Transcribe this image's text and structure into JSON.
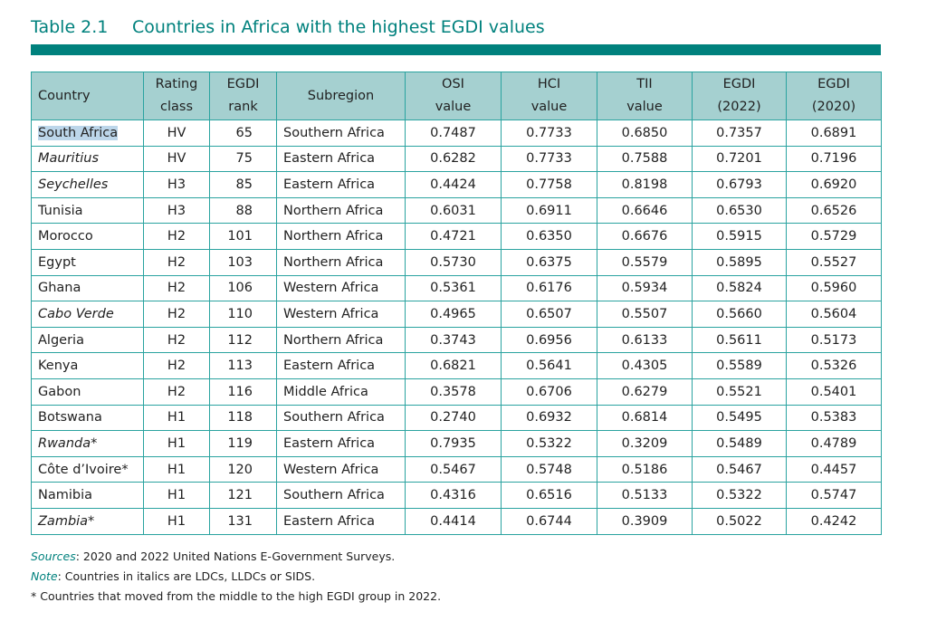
{
  "title": {
    "number": "Table 2.1",
    "text": "Countries in Africa with the highest EGDI values"
  },
  "headers": [
    [
      "Country"
    ],
    [
      "Rating",
      "class"
    ],
    [
      "EGDI",
      "rank"
    ],
    [
      "Subregion"
    ],
    [
      "OSI",
      "value"
    ],
    [
      "HCI",
      "value"
    ],
    [
      "TII",
      "value"
    ],
    [
      "EGDI",
      "(2022)"
    ],
    [
      "EGDI",
      "(2020)"
    ]
  ],
  "rows": [
    {
      "country": "South Africa",
      "italic": false,
      "selected": true,
      "class": "HV",
      "rank": "65",
      "subregion": "Southern Africa",
      "osi": "0.7487",
      "hci": "0.7733",
      "tii": "0.6850",
      "egdi2022": "0.7357",
      "egdi2020": "0.6891"
    },
    {
      "country": "Mauritius",
      "italic": true,
      "class": "HV",
      "rank": "75",
      "subregion": "Eastern Africa",
      "osi": "0.6282",
      "hci": "0.7733",
      "tii": "0.7588",
      "egdi2022": "0.7201",
      "egdi2020": "0.7196"
    },
    {
      "country": "Seychelles",
      "italic": true,
      "class": "H3",
      "rank": "85",
      "subregion": "Eastern Africa",
      "osi": "0.4424",
      "hci": "0.7758",
      "tii": "0.8198",
      "egdi2022": "0.6793",
      "egdi2020": "0.6920"
    },
    {
      "country": "Tunisia",
      "italic": false,
      "class": "H3",
      "rank": "88",
      "subregion": "Northern Africa",
      "osi": "0.6031",
      "hci": "0.6911",
      "tii": "0.6646",
      "egdi2022": "0.6530",
      "egdi2020": "0.6526"
    },
    {
      "country": "Morocco",
      "italic": false,
      "class": "H2",
      "rank": "101",
      "subregion": "Northern Africa",
      "osi": "0.4721",
      "hci": "0.6350",
      "tii": "0.6676",
      "egdi2022": "0.5915",
      "egdi2020": "0.5729"
    },
    {
      "country": "Egypt",
      "italic": false,
      "class": "H2",
      "rank": "103",
      "subregion": "Northern Africa",
      "osi": "0.5730",
      "hci": "0.6375",
      "tii": "0.5579",
      "egdi2022": "0.5895",
      "egdi2020": "0.5527"
    },
    {
      "country": "Ghana",
      "italic": false,
      "class": "H2",
      "rank": "106",
      "subregion": "Western Africa",
      "osi": "0.5361",
      "hci": "0.6176",
      "tii": "0.5934",
      "egdi2022": "0.5824",
      "egdi2020": "0.5960"
    },
    {
      "country": "Cabo Verde",
      "italic": true,
      "class": "H2",
      "rank": "110",
      "subregion": "Western Africa",
      "osi": "0.4965",
      "hci": "0.6507",
      "tii": "0.5507",
      "egdi2022": "0.5660",
      "egdi2020": "0.5604"
    },
    {
      "country": "Algeria",
      "italic": false,
      "class": "H2",
      "rank": "112",
      "subregion": "Northern Africa",
      "osi": "0.3743",
      "hci": "0.6956",
      "tii": "0.6133",
      "egdi2022": "0.5611",
      "egdi2020": "0.5173"
    },
    {
      "country": "Kenya",
      "italic": false,
      "class": "H2",
      "rank": "113",
      "subregion": "Eastern Africa",
      "osi": "0.6821",
      "hci": "0.5641",
      "tii": "0.4305",
      "egdi2022": "0.5589",
      "egdi2020": "0.5326"
    },
    {
      "country": "Gabon",
      "italic": false,
      "class": "H2",
      "rank": "116",
      "subregion": "Middle Africa",
      "osi": "0.3578",
      "hci": "0.6706",
      "tii": "0.6279",
      "egdi2022": "0.5521",
      "egdi2020": "0.5401"
    },
    {
      "country": "Botswana",
      "italic": false,
      "class": "H1",
      "rank": "118",
      "subregion": "Southern Africa",
      "osi": "0.2740",
      "hci": "0.6932",
      "tii": "0.6814",
      "egdi2022": "0.5495",
      "egdi2020": "0.5383"
    },
    {
      "country": "Rwanda*",
      "italic": true,
      "class": "H1",
      "rank": "119",
      "subregion": "Eastern Africa",
      "osi": "0.7935",
      "hci": "0.5322",
      "tii": "0.3209",
      "egdi2022": "0.5489",
      "egdi2020": "0.4789"
    },
    {
      "country": "Côte d’Ivoire*",
      "italic": false,
      "class": "H1",
      "rank": "120",
      "subregion": "Western Africa",
      "osi": "0.5467",
      "hci": "0.5748",
      "tii": "0.5186",
      "egdi2022": "0.5467",
      "egdi2020": "0.4457"
    },
    {
      "country": "Namibia",
      "italic": false,
      "class": "H1",
      "rank": "121",
      "subregion": "Southern Africa",
      "osi": "0.4316",
      "hci": "0.6516",
      "tii": "0.5133",
      "egdi2022": "0.5322",
      "egdi2020": "0.5747"
    },
    {
      "country": "Zambia*",
      "italic": true,
      "class": "H1",
      "rank": "131",
      "subregion": "Eastern Africa",
      "osi": "0.4414",
      "hci": "0.6744",
      "tii": "0.3909",
      "egdi2022": "0.5022",
      "egdi2020": "0.4242"
    }
  ],
  "notes": {
    "sources_label": "Sources",
    "sources_text": ": 2020 and 2022 United Nations E-Government Surveys.",
    "note_label": "Note",
    "note_text": ": Countries in italics are LDCs, LLDCs or SIDS.",
    "asterisk": "* Countries that moved from the middle to the high EGDI group in 2022."
  },
  "colors": {
    "accent": "#00817d",
    "header_bg": "#a5d0d0",
    "border": "#2aa3a0"
  }
}
